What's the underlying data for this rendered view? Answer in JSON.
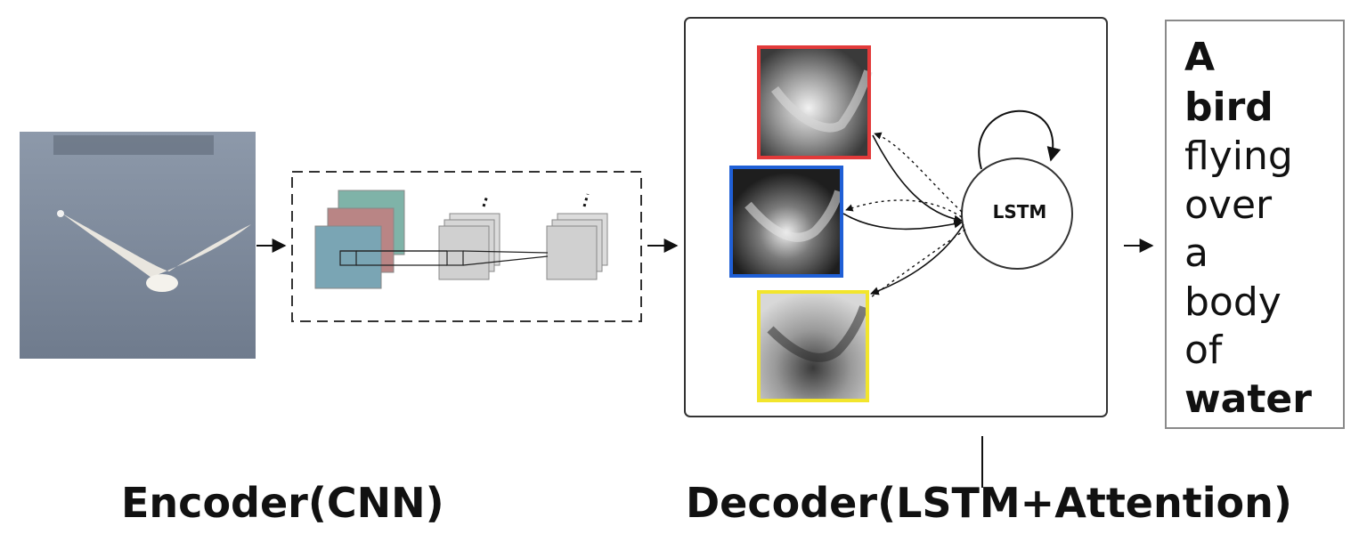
{
  "encoder": {
    "label": "Encoder(CNN)"
  },
  "decoder": {
    "label": "Decoder(LSTM+Attention)",
    "lstm_label": "LSTM"
  },
  "caption": {
    "words": [
      {
        "text": "A",
        "bold": true,
        "highlight": "#e23a3a"
      },
      {
        "text": "bird",
        "bold": true,
        "highlight": "#2a6ad8"
      },
      {
        "text": "flying",
        "bold": false,
        "highlight": ""
      },
      {
        "text": "over",
        "bold": false,
        "highlight": ""
      },
      {
        "text": "a",
        "bold": false,
        "highlight": ""
      },
      {
        "text": "body",
        "bold": false,
        "highlight": ""
      },
      {
        "text": "of",
        "bold": false,
        "highlight": ""
      },
      {
        "text": "water",
        "bold": true,
        "highlight": "#f2e52c"
      }
    ]
  },
  "colors": {
    "attention_red": "#e23a3a",
    "attention_blue": "#1f5fd6",
    "attention_yellow": "#f2e52c",
    "layer_teal": "#7fb3a8",
    "layer_red": "#b98585",
    "layer_blue": "#7aa5b4",
    "layer_gray": "#d2d2d2"
  }
}
